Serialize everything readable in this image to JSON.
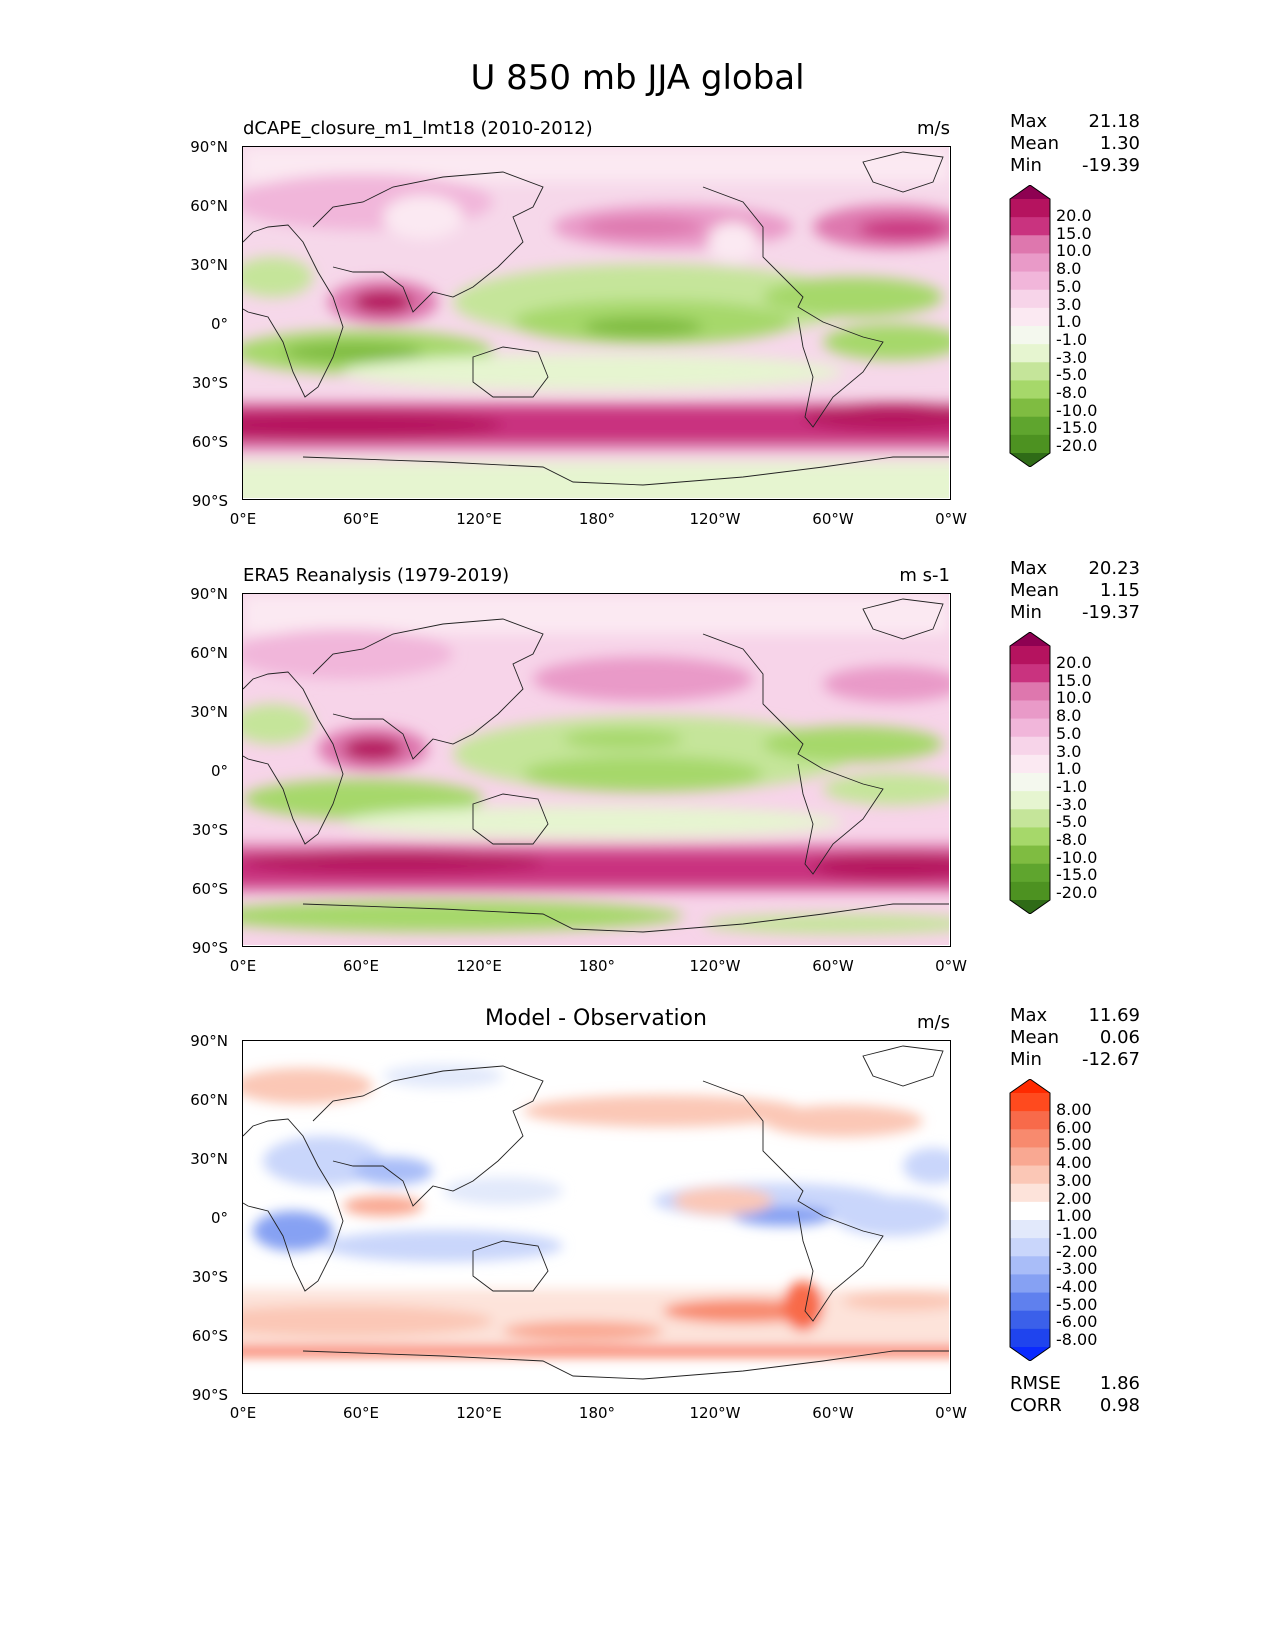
{
  "figure": {
    "title": "U 850 mb JJA global"
  },
  "axes": {
    "lat_labels": [
      "90°N",
      "60°N",
      "30°N",
      "0°",
      "30°S",
      "60°S",
      "90°S"
    ],
    "lon_labels": [
      "0°E",
      "60°E",
      "120°E",
      "180°",
      "120°W",
      "60°W",
      "0°W"
    ]
  },
  "panels": [
    {
      "title": "dCAPE_closure_m1_lmt18 (2010-2012)",
      "units": "m/s",
      "stats": {
        "max_label": "Max",
        "max": "21.18",
        "mean_label": "Mean",
        "mean": "1.30",
        "min_label": "Min",
        "min": "-19.39"
      },
      "colorbar": {
        "labels": [
          "20.0",
          "15.0",
          "10.0",
          "8.0",
          "5.0",
          "3.0",
          "1.0",
          "-1.0",
          "-3.0",
          "-5.0",
          "-8.0",
          "-10.0",
          "-15.0",
          "-20.0"
        ],
        "colors": [
          "#8e0152",
          "#b5135f",
          "#c9337f",
          "#de77ae",
          "#e99ac8",
          "#f1b6da",
          "#f7d4e9",
          "#fbe9f2",
          "#f4f8ee",
          "#e6f5d0",
          "#c5e59a",
          "#a6d86a",
          "#7fbc41",
          "#5fa52e",
          "#4d9221",
          "#2f6b17"
        ]
      },
      "chart_data": {
        "type": "heatmap",
        "variable": "U 850 mb",
        "season": "JJA",
        "period": "2010-2012",
        "xlim": [
          0,
          360
        ],
        "ylim": [
          -90,
          90
        ],
        "zonal_structure": [
          {
            "lat": 62,
            "u": 12
          },
          {
            "lat": 45,
            "u": 8
          },
          {
            "lat": 20,
            "u": -6
          },
          {
            "lat": 0,
            "u": -9
          },
          {
            "lat": -15,
            "u": -8
          },
          {
            "lat": -50,
            "u": 14
          },
          {
            "lat": -75,
            "u": -3
          }
        ],
        "max": 21.18,
        "mean": 1.3,
        "min": -19.39
      }
    },
    {
      "title": "ERA5 Reanalysis (1979-2019)",
      "units": "m s-1",
      "stats": {
        "max_label": "Max",
        "max": "20.23",
        "mean_label": "Mean",
        "mean": "1.15",
        "min_label": "Min",
        "min": "-19.37"
      },
      "colorbar": {
        "labels": [
          "20.0",
          "15.0",
          "10.0",
          "8.0",
          "5.0",
          "3.0",
          "1.0",
          "-1.0",
          "-3.0",
          "-5.0",
          "-8.0",
          "-10.0",
          "-15.0",
          "-20.0"
        ],
        "colors": [
          "#8e0152",
          "#b5135f",
          "#c9337f",
          "#de77ae",
          "#e99ac8",
          "#f1b6da",
          "#f7d4e9",
          "#fbe9f2",
          "#f4f8ee",
          "#e6f5d0",
          "#c5e59a",
          "#a6d86a",
          "#7fbc41",
          "#5fa52e",
          "#4d9221",
          "#2f6b17"
        ]
      },
      "chart_data": {
        "type": "heatmap",
        "variable": "U 850 mb",
        "season": "JJA",
        "period": "1979-2019",
        "xlim": [
          0,
          360
        ],
        "ylim": [
          -90,
          90
        ],
        "zonal_structure": [
          {
            "lat": 62,
            "u": 8
          },
          {
            "lat": 45,
            "u": 6
          },
          {
            "lat": 20,
            "u": -5
          },
          {
            "lat": 0,
            "u": -8
          },
          {
            "lat": -15,
            "u": -7
          },
          {
            "lat": -50,
            "u": 13
          },
          {
            "lat": -75,
            "u": -6
          }
        ],
        "max": 20.23,
        "mean": 1.15,
        "min": -19.37
      }
    },
    {
      "title": "Model - Observation",
      "units": "m/s",
      "stats": {
        "max_label": "Max",
        "max": "11.69",
        "mean_label": "Mean",
        "mean": "0.06",
        "min_label": "Min",
        "min": "-12.67"
      },
      "metrics": {
        "rmse_label": "RMSE",
        "rmse": "1.86",
        "corr_label": "CORR",
        "corr": "0.98"
      },
      "colorbar": {
        "labels": [
          "8.00",
          "6.00",
          "5.00",
          "4.00",
          "3.00",
          "2.00",
          "1.00",
          "-1.00",
          "-2.00",
          "-3.00",
          "-4.00",
          "-5.00",
          "-6.00",
          "-8.00"
        ],
        "colors": [
          "#ff2a00",
          "#ff4a1e",
          "#f86a4a",
          "#f88a6e",
          "#f9a892",
          "#fbc7b6",
          "#fde3da",
          "#ffffff",
          "#e2e9fb",
          "#c9d6fb",
          "#a9bdf8",
          "#86a1f3",
          "#5f80ee",
          "#3b60ea",
          "#1f44ee",
          "#0a2aff"
        ]
      },
      "chart_data": {
        "type": "heatmap",
        "variable": "U 850 mb difference",
        "xlim": [
          0,
          360
        ],
        "ylim": [
          -90,
          90
        ],
        "zonal_structure": [
          {
            "lat": 62,
            "u": 2
          },
          {
            "lat": 45,
            "u": 2
          },
          {
            "lat": 20,
            "u": -1
          },
          {
            "lat": 0,
            "u": -2
          },
          {
            "lat": -50,
            "u": 2.5
          },
          {
            "lat": -67,
            "u": 5
          }
        ],
        "max": 11.69,
        "mean": 0.06,
        "min": -12.67,
        "rmse": 1.86,
        "corr": 0.98
      }
    }
  ]
}
